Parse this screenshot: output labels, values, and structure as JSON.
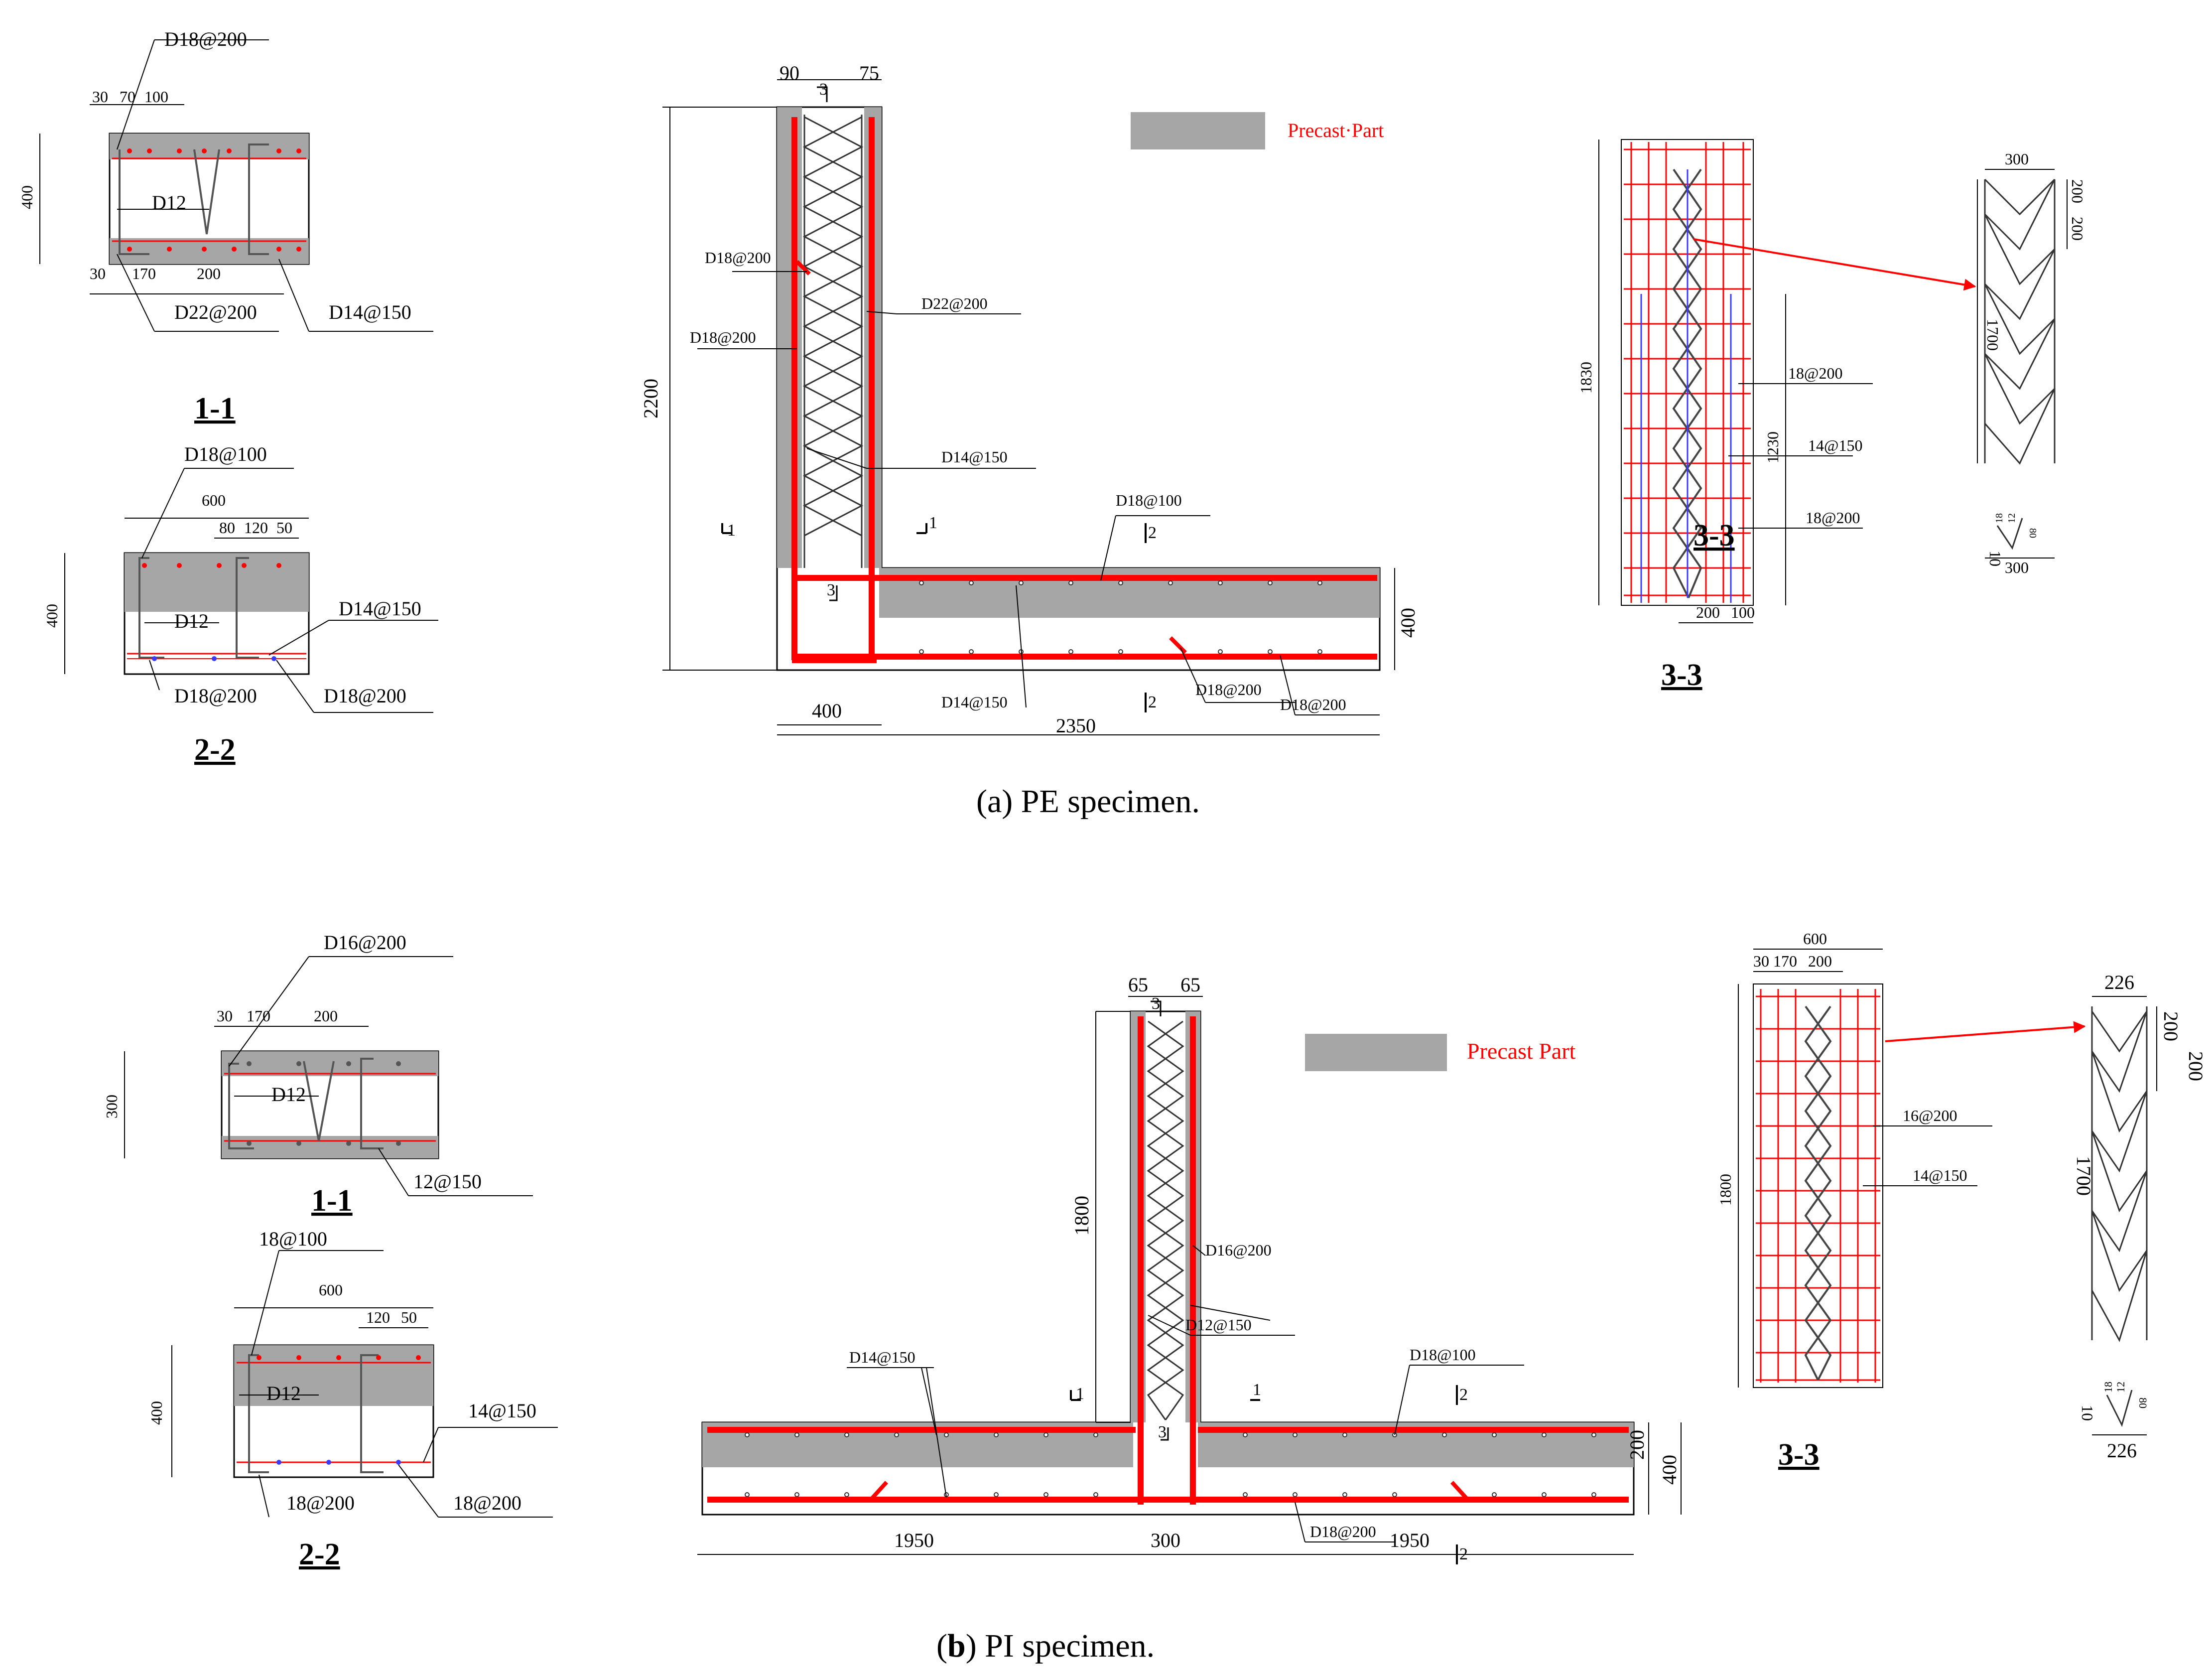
{
  "panel_a": {
    "caption": "(a) PE specimen.",
    "legend": "Precast·Part",
    "section_1_1": {
      "title": "1-1",
      "labels": {
        "top": "D18@200",
        "mid": "D12",
        "bot1": "D22@200",
        "bot2": "D14@150"
      },
      "dims": {
        "d30": "30",
        "d70": "70",
        "d100": "100",
        "d400": "400",
        "b30": "30",
        "b170": "170",
        "b200": "200"
      }
    },
    "section_2_2": {
      "title": "2-2",
      "labels": {
        "top": "D18@100",
        "mid": "D12",
        "right": "D14@150",
        "bot1": "D18@200",
        "bot2": "D18@200"
      },
      "dims": {
        "d600": "600",
        "d80": "80",
        "d120": "120",
        "d50": "50",
        "d400": "400"
      }
    },
    "elevation": {
      "dims": {
        "w90": "90",
        "w75": "75",
        "h2200": "2200",
        "h400": "400",
        "b400": "400",
        "b2350": "2350"
      },
      "labels": {
        "l1": "D18@200",
        "l2": "D22@200",
        "l3": "D18@200",
        "l4": "D14@150",
        "l5": "D18@100",
        "l6": "D14@150",
        "l7": "D18@200",
        "l8": "D18@200"
      },
      "cut_marks": {
        "c1": "1",
        "c2": "1",
        "c3": "3",
        "c4": "3",
        "c5": "2",
        "c6": "2"
      }
    },
    "section_3_3": {
      "title": "3-3",
      "inner_title": "3-3",
      "labels": {
        "a": "18@200",
        "b": "14@150",
        "c": "18@200"
      },
      "dims": {
        "h1830": "1830",
        "h1230": "1230",
        "w200": "200",
        "w100": "100"
      }
    },
    "truss_detail": {
      "dims": {
        "w300": "300",
        "d200a": "200",
        "d200b": "200",
        "h1700": "1700",
        "w300b": "300",
        "t10": "10",
        "t18": "18",
        "t12": "12",
        "t80": "80"
      }
    }
  },
  "panel_b": {
    "caption_bold": "b",
    "caption_rest": ") PI specimen.",
    "caption_open": "(",
    "legend": "Precast Part",
    "section_1_1": {
      "title": "1-1",
      "labels": {
        "top": "D16@200",
        "mid": "D12",
        "right": "12@150"
      },
      "dims": {
        "d30": "30",
        "d170": "170",
        "d200": "200",
        "d300": "300"
      }
    },
    "section_2_2": {
      "title": "2-2",
      "labels": {
        "top": "18@100",
        "mid": "D12",
        "right": "14@150",
        "bot1": "18@200",
        "bot2": "18@200"
      },
      "dims": {
        "d600": "600",
        "d120": "120",
        "d50": "50",
        "d400": "400"
      }
    },
    "elevation": {
      "dims": {
        "w65a": "65",
        "w65b": "65",
        "h1800": "1800",
        "h200": "200",
        "h400": "400",
        "b1950a": "1950",
        "b300": "300",
        "b1950b": "1950"
      },
      "labels": {
        "l1": "D16@200",
        "l2": "D12@150",
        "l3": "D14@150",
        "l4": "D18@100",
        "l5": "D18@200"
      },
      "cut_marks": {
        "c1": "1",
        "c2": "1",
        "c3": "3",
        "c4": "3",
        "c5": "2",
        "c6": "2"
      }
    },
    "section_3_3": {
      "title": "3-3",
      "labels": {
        "a": "16@200",
        "b": "14@150"
      },
      "dims": {
        "w600": "600",
        "w30": "30",
        "w170": "170",
        "w200": "200",
        "h1800": "1800"
      }
    },
    "truss_detail": {
      "dims": {
        "w226": "226",
        "d200a": "200",
        "d200b": "200",
        "h1700": "1700",
        "w226b": "226",
        "t10": "10",
        "t18": "18",
        "t12": "12",
        "t80": "80"
      }
    }
  },
  "colors": {
    "rebar": "#ff0000",
    "precast": "#a6a6a6",
    "stirrup_blue": "#3b3bff"
  }
}
